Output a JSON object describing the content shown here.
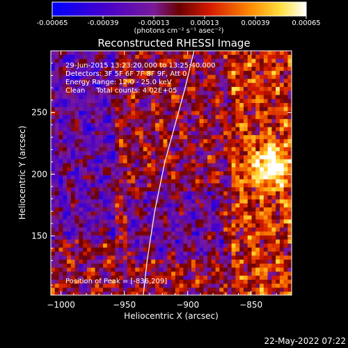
{
  "chart_data": {
    "type": "heatmap",
    "title": "Reconstructed RHESSI Image",
    "xlabel": "Heliocentric X (arcsec)",
    "ylabel": "Heliocentric Y (arcsec)",
    "xlim": [
      -1008,
      -818
    ],
    "ylim": [
      102,
      300
    ],
    "x_ticks": [
      -1000,
      -950,
      -900,
      -850
    ],
    "y_ticks": [
      150,
      200,
      250
    ],
    "colorbar": {
      "ticks": [
        "-0.00065",
        "-0.00039",
        "-0.00013",
        "0.00013",
        "0.00039",
        "0.00065"
      ],
      "tick_values": [
        -0.00065,
        -0.00039,
        -0.00013,
        0.00013,
        0.00039,
        0.00065
      ],
      "range": [
        -0.00065,
        0.00065
      ],
      "unit_label": "(photons cm⁻² s⁻¹ asec⁻²)",
      "colors": [
        "#0000ff",
        "#4400cc",
        "#7a1a9a",
        "#6a0000",
        "#d41a00",
        "#ff8a00",
        "#ffe040",
        "#ffffff"
      ]
    },
    "annotations": [
      "29-Jun-2015 13:23:20.000 to 13:25:40.000",
      "Detectors: 3F 5F 6F 7F 8F 9F, Att 0",
      "Energy Range: 12.0 - 25.0 keV",
      "Clean     Total counts: 4.02E+05"
    ],
    "peak_label": "Position of Peak = [-836,209]",
    "peak": [
      -836,
      209
    ],
    "limb_curve": {
      "x": [
        -935,
        -932,
        -926,
        -918,
        -910,
        -902,
        -895
      ],
      "y": [
        102,
        130,
        170,
        210,
        240,
        270,
        300
      ]
    },
    "timestamp": "22-May-2022 07:22"
  }
}
